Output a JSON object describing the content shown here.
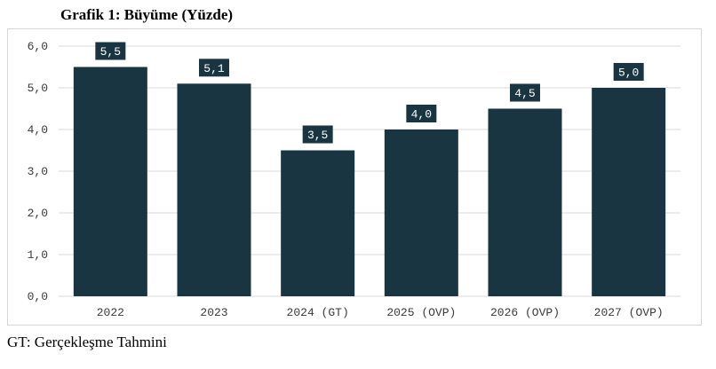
{
  "title": "Grafik 1: Büyüme (Yüzde)",
  "footnote": "GT: Gerçekleşme Tahmini",
  "colors": {
    "bar": "#1a3542",
    "label_bg": "#1a3542",
    "label_text": "#ffffff",
    "grid": "#d9d9d9",
    "axis_text": "#3a3a3a"
  },
  "chart_data": {
    "type": "bar",
    "categories": [
      "2022",
      "2023",
      "2024 (GT)",
      "2025 (OVP)",
      "2026 (OVP)",
      "2027 (OVP)"
    ],
    "values": [
      5.5,
      5.1,
      3.5,
      4.0,
      4.5,
      5.0
    ],
    "data_labels": [
      "5,5",
      "5,1",
      "3,5",
      "4,0",
      "4,5",
      "5,0"
    ],
    "title": "Grafik 1: Büyüme (Yüzde)",
    "xlabel": "",
    "ylabel": "",
    "ylim": [
      0,
      6
    ],
    "yticks": [
      0,
      1,
      2,
      3,
      4,
      5,
      6
    ],
    "ytick_labels": [
      "0,0",
      "1,0",
      "2,0",
      "3,0",
      "4,0",
      "5,0",
      "6,0"
    ],
    "grid": true,
    "legend": "none"
  }
}
